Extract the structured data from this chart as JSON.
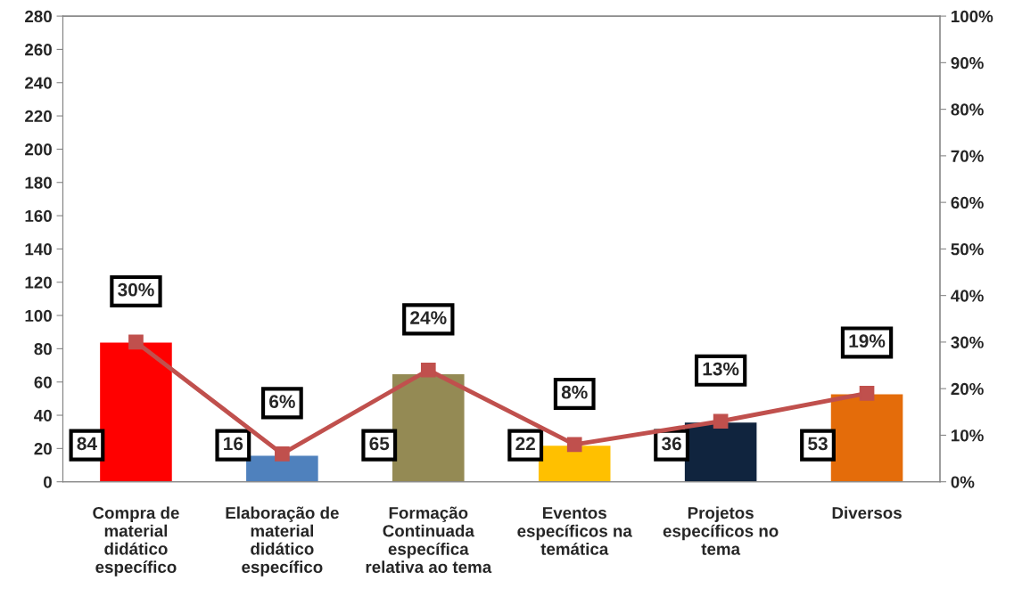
{
  "chart_data": {
    "type": "bar",
    "categories": [
      "Compra de material didático específico",
      "Elaboração de material didático específico",
      "Formação Continuada específica relativa ao tema",
      "Eventos específicos na temática",
      "Projetos específicos no tema",
      "Diversos"
    ],
    "series": [
      {
        "colors": [
          "#ff0000",
          "#4f81bd",
          "#948a54",
          "#ffc000",
          "#10243e",
          "#e46c0a"
        ],
        "values": [
          84,
          16,
          65,
          22,
          36,
          53
        ],
        "value_labels": [
          "84",
          "16",
          "65",
          "22",
          "36",
          "53"
        ]
      },
      {
        "type": "line",
        "axis": "y2",
        "color": "#c0504d",
        "marker": "square",
        "values": [
          30,
          6,
          24,
          8,
          13,
          19
        ],
        "value_labels": [
          "30%",
          "6%",
          "24%",
          "8%",
          "13%",
          "19%"
        ]
      }
    ],
    "ylim": [
      0,
      280
    ],
    "yticks": [
      0,
      20,
      40,
      60,
      80,
      100,
      120,
      140,
      160,
      180,
      200,
      220,
      240,
      260,
      280
    ],
    "y2lim": [
      0,
      100
    ],
    "y2ticks": [
      {
        "value": 0,
        "label": "0%"
      },
      {
        "value": 10,
        "label": "10%"
      },
      {
        "value": 20,
        "label": "20%"
      },
      {
        "value": 30,
        "label": "30%"
      },
      {
        "value": 40,
        "label": "40%"
      },
      {
        "value": 50,
        "label": "50%"
      },
      {
        "value": 60,
        "label": "60%"
      },
      {
        "value": 70,
        "label": "70%"
      },
      {
        "value": 80,
        "label": "80%"
      },
      {
        "value": 90,
        "label": "90%"
      },
      {
        "value": 100,
        "label": "100%"
      }
    ],
    "grid": false,
    "legend": false
  }
}
